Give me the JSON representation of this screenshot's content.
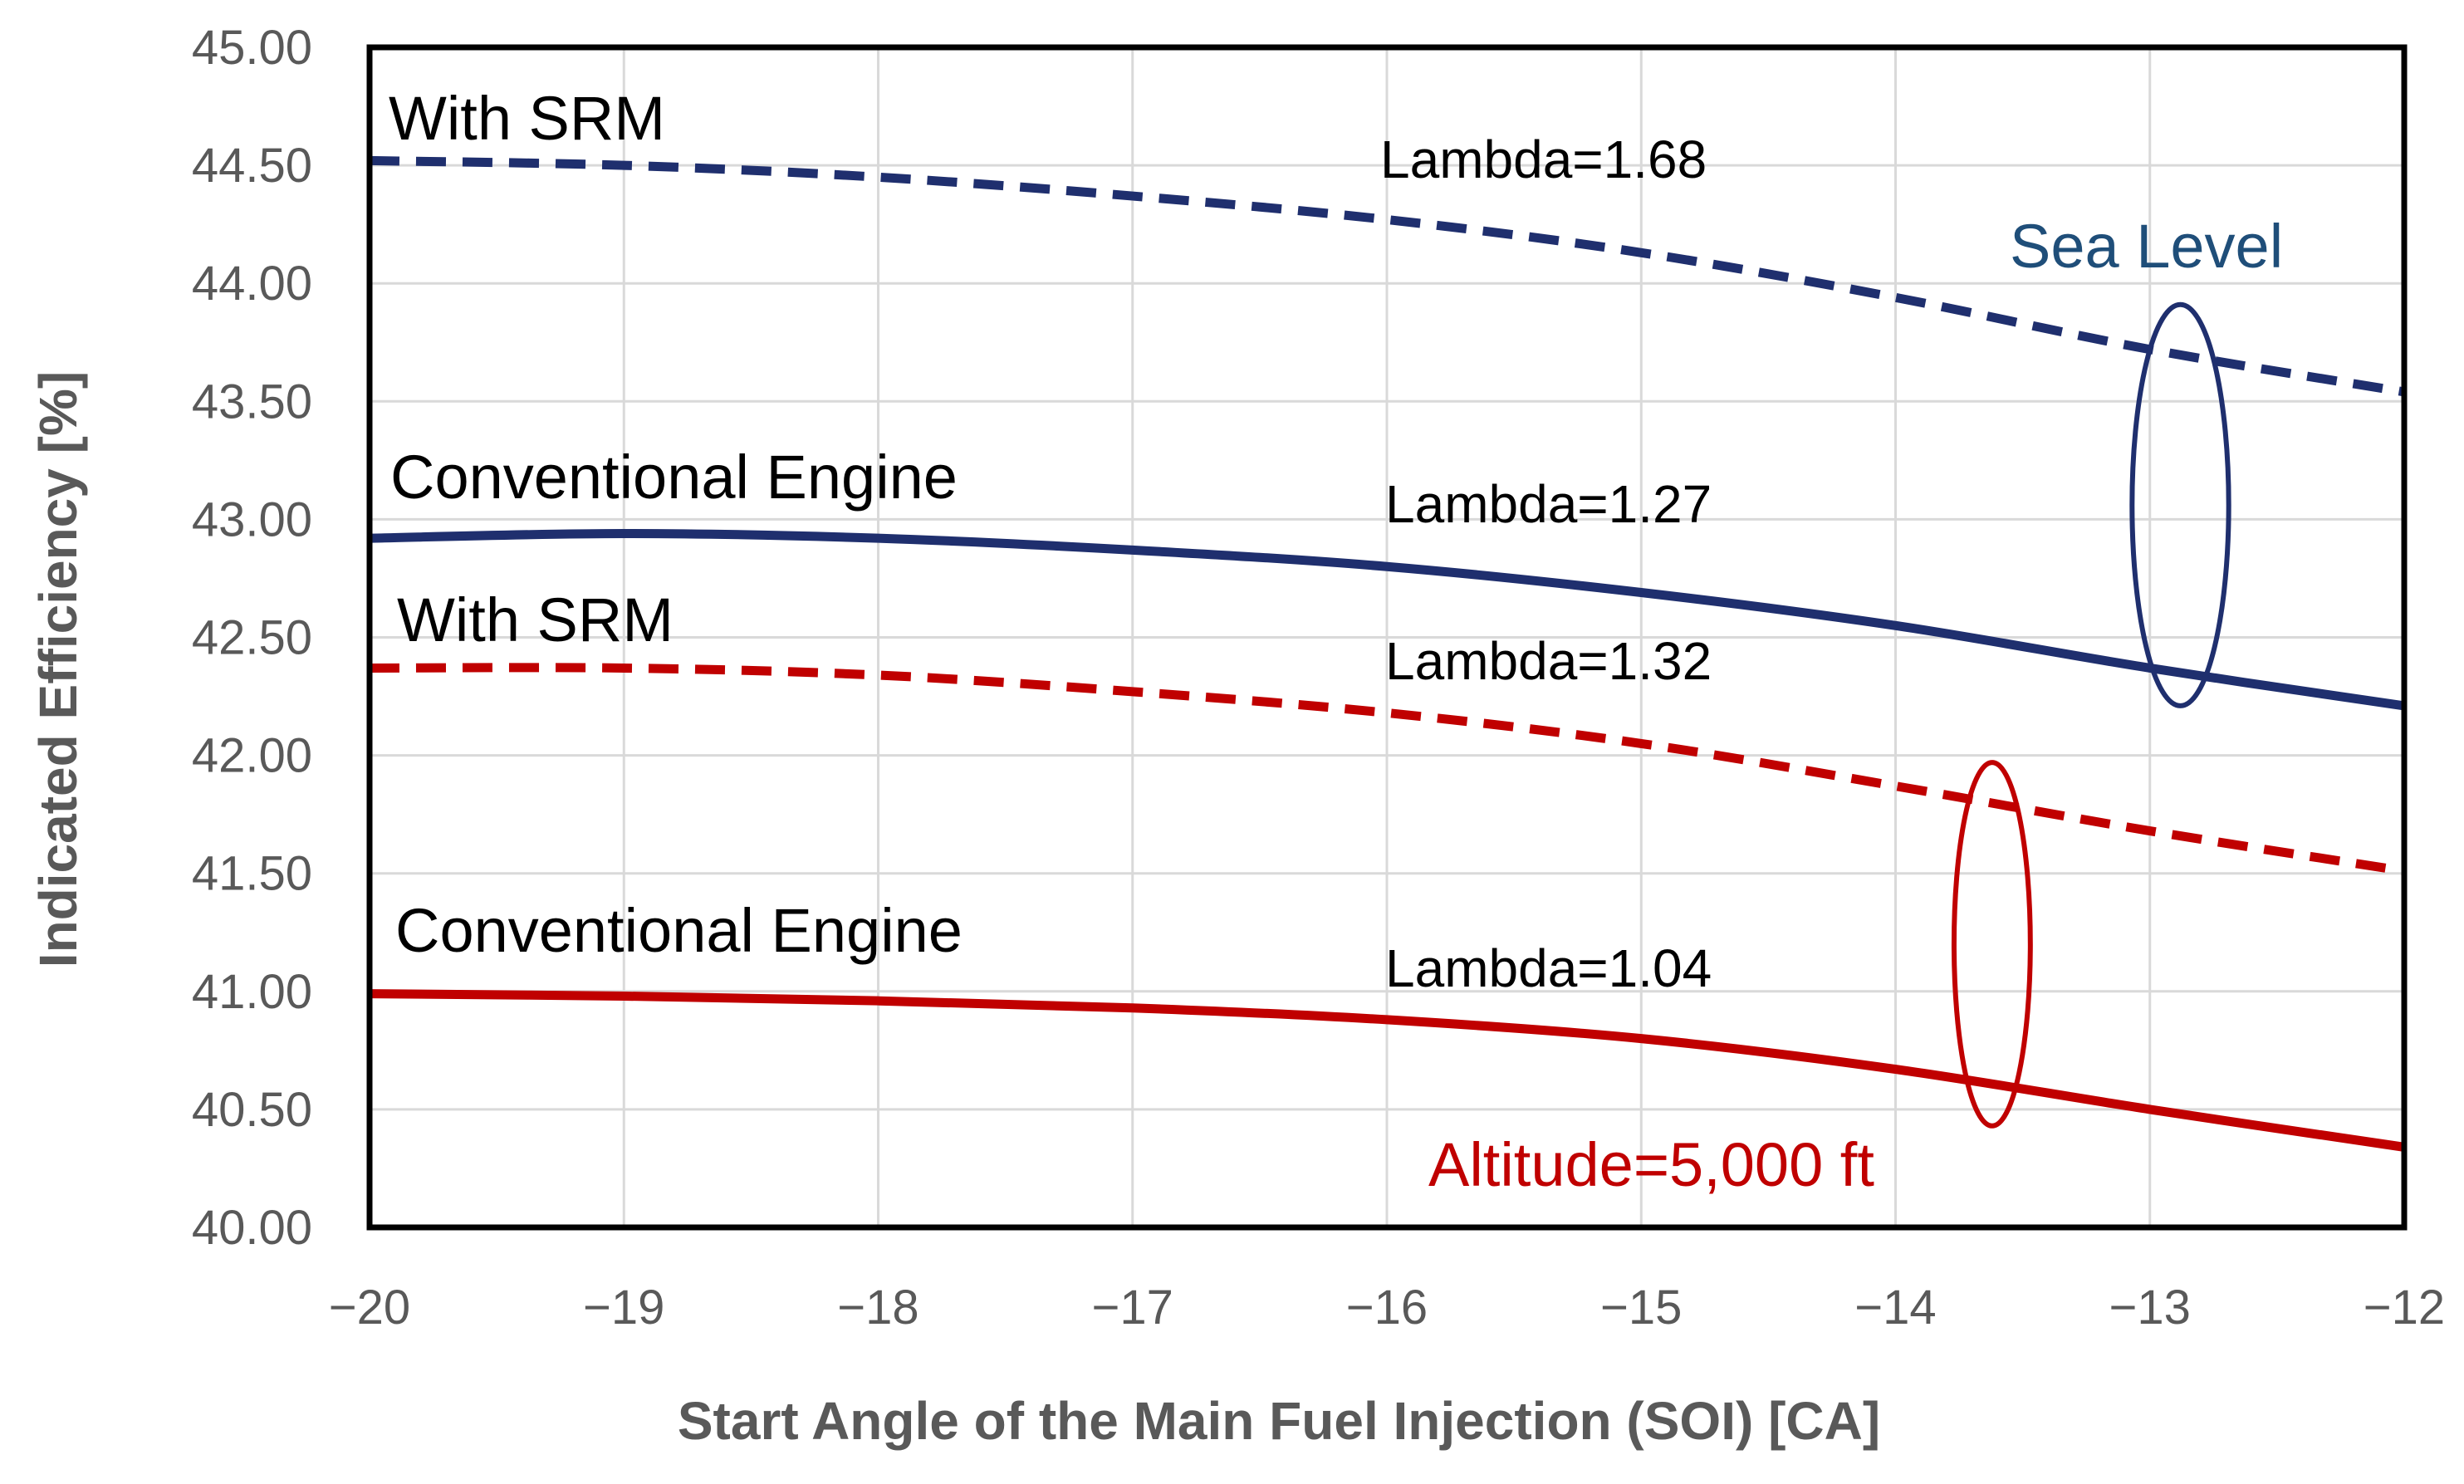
{
  "chart_data": {
    "type": "line",
    "title": "",
    "xlabel": "Start Angle of the Main Fuel Injection (SOI) [CA]",
    "ylabel": "Indicated Efficiency [%]",
    "xlim": [
      -20,
      -12
    ],
    "ylim": [
      40.0,
      45.0
    ],
    "x_ticks": [
      -20,
      -19,
      -18,
      -17,
      -16,
      -15,
      -14,
      -13,
      -12
    ],
    "y_ticks": [
      "40.00",
      "40.50",
      "41.00",
      "41.50",
      "42.00",
      "42.50",
      "43.00",
      "43.50",
      "44.00",
      "44.50",
      "45.00"
    ],
    "grid": true,
    "colors": {
      "sea_level": "#1f2f6e",
      "altitude": "#c00000",
      "axis_text": "#595959",
      "grid": "#d9d9d9",
      "frame": "#000000",
      "sea_label": "#1f4e79"
    },
    "series": [
      {
        "name": "Sea Level - With SRM",
        "label": "With SRM",
        "lambda": "Lambda=1.68",
        "group": "sea_level",
        "style": "dashed",
        "x": [
          -20,
          -19,
          -18,
          -17,
          -16,
          -15,
          -14,
          -13,
          -12
        ],
        "values": [
          44.52,
          44.5,
          44.45,
          44.37,
          44.27,
          44.13,
          43.94,
          43.72,
          43.54
        ]
      },
      {
        "name": "Sea Level - Conventional Engine",
        "label": "Conventional Engine",
        "lambda": "Lambda=1.27",
        "group": "sea_level",
        "style": "solid",
        "x": [
          -20,
          -19,
          -18,
          -17,
          -16,
          -15,
          -14,
          -13,
          -12
        ],
        "values": [
          42.92,
          42.94,
          42.92,
          42.87,
          42.8,
          42.69,
          42.55,
          42.37,
          42.21
        ]
      },
      {
        "name": "Altitude - With SRM",
        "label": "With SRM",
        "lambda": "Lambda=1.32",
        "group": "altitude",
        "style": "dashed",
        "x": [
          -20,
          -19,
          -18,
          -17,
          -16,
          -15,
          -14,
          -13,
          -12
        ],
        "values": [
          42.37,
          42.37,
          42.34,
          42.27,
          42.18,
          42.05,
          41.87,
          41.68,
          41.51
        ]
      },
      {
        "name": "Altitude - Conventional Engine",
        "label": "Conventional Engine",
        "lambda": "Lambda=1.04",
        "group": "altitude",
        "style": "solid",
        "x": [
          -20,
          -19,
          -18,
          -17,
          -16,
          -15,
          -14,
          -13,
          -12
        ],
        "values": [
          40.99,
          40.98,
          40.96,
          40.93,
          40.88,
          40.8,
          40.67,
          40.5,
          40.34
        ]
      }
    ],
    "annotations": {
      "sea_level": "Sea Level",
      "altitude": "Altitude=5,000 ft"
    },
    "ellipses": [
      {
        "group": "sea_level",
        "cx": -12.88,
        "cy": 43.06,
        "rx": 0.19,
        "ry": 0.85
      },
      {
        "group": "altitude",
        "cx": -13.62,
        "cy": 41.2,
        "rx": 0.15,
        "ry": 0.77
      }
    ]
  }
}
